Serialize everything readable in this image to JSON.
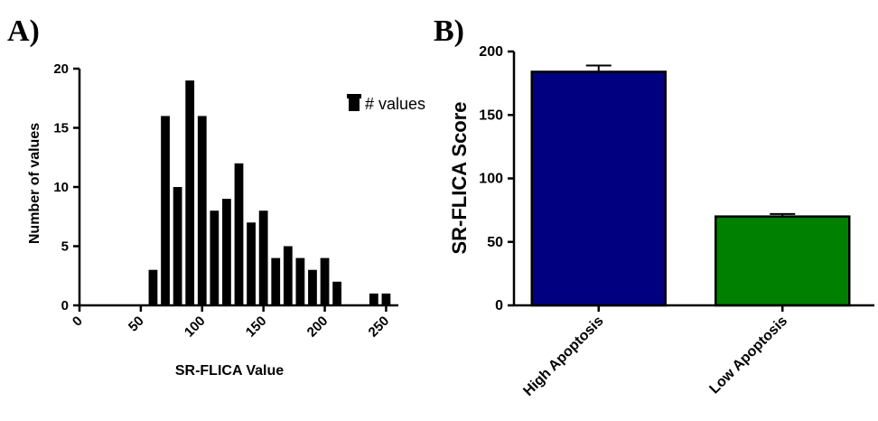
{
  "panels": {
    "a_label": "A)",
    "b_label": "B)"
  },
  "chart_data": [
    {
      "type": "bar",
      "subtype": "histogram",
      "title": "",
      "xlabel": "SR-FLICA Value",
      "ylabel": "Number of values",
      "xlim": [
        0,
        260
      ],
      "ylim": [
        0,
        20
      ],
      "x_ticks": [
        "0",
        "50",
        "100",
        "150",
        "200",
        "250"
      ],
      "y_ticks": [
        "0",
        "5",
        "10",
        "15",
        "20"
      ],
      "bin_centers": [
        60,
        70,
        80,
        90,
        100,
        110,
        120,
        130,
        140,
        150,
        160,
        170,
        180,
        190,
        200,
        210,
        240,
        250
      ],
      "values": [
        3,
        16,
        10,
        19,
        16,
        8,
        9,
        12,
        7,
        8,
        4,
        5,
        4,
        3,
        4,
        2,
        1,
        1
      ],
      "bar_color": "#000000",
      "legend": {
        "position": "top-right",
        "label": "# values"
      }
    },
    {
      "type": "bar",
      "title": "",
      "xlabel": "",
      "ylabel": "SR-FLICA Score",
      "ylim": [
        0,
        200
      ],
      "y_ticks": [
        "0",
        "50",
        "100",
        "150",
        "200"
      ],
      "categories": [
        "High Apoptosis",
        "Low Apoptosis"
      ],
      "values": [
        184,
        70
      ],
      "error": [
        5,
        2
      ],
      "colors": [
        "#000080",
        "#008000"
      ]
    }
  ]
}
